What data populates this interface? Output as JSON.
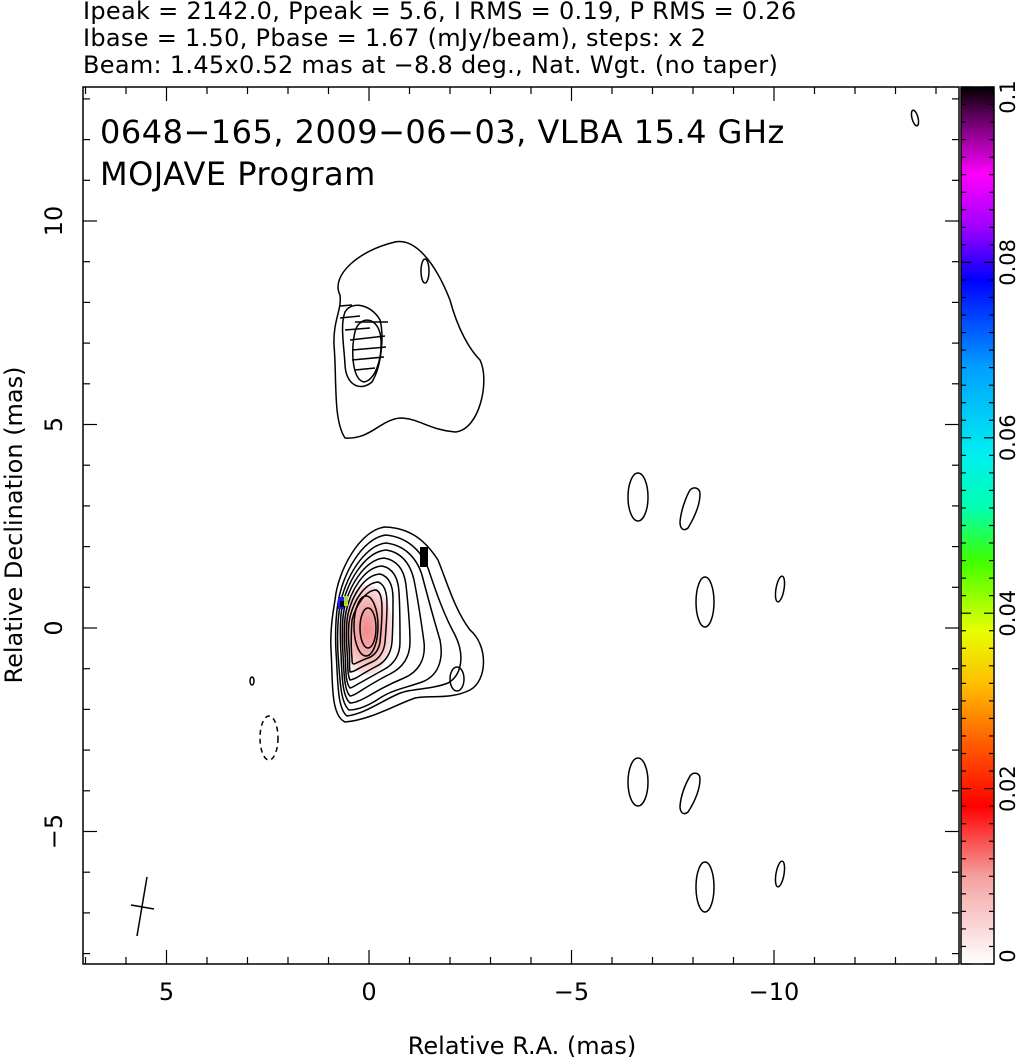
{
  "header": {
    "line1": "Ipeak = 2142.0, Ppeak = 5.6, I RMS = 0.19, P RMS = 0.26",
    "line2": "Ibase = 1.50, Pbase = 1.67 (mJy/beam), steps: x 2",
    "line3": "Beam: 1.45x0.52 mas at −8.8 deg., Nat. Wgt. (no taper)"
  },
  "chart_data": {
    "type": "contour",
    "title": "0648−165, 2009−06−03, VLBA 15.4 GHz",
    "subtitle": "MOJAVE Program",
    "xlabel": "Relative R.A. (mas)",
    "ylabel": "Relative Declination (mas)",
    "xlim": [
      7,
      -14.5
    ],
    "ylim": [
      -8.2,
      13.3
    ],
    "x_ticks": [
      5,
      0,
      -5,
      -10
    ],
    "x_tick_labels": [
      "5",
      "0",
      "−5",
      "−10"
    ],
    "y_ticks": [
      10,
      5,
      0,
      -5
    ],
    "y_tick_labels": [
      "10",
      "5",
      "0",
      "−5"
    ],
    "colorbar": {
      "range": [
        0,
        0.1
      ],
      "ticks": [
        0,
        0.02,
        0.04,
        0.06,
        0.08,
        0.1
      ],
      "tick_labels": [
        "0",
        "0.02",
        "0.04",
        "0.06",
        "0.08",
        "0.1"
      ]
    },
    "beam": {
      "major_mas": 1.45,
      "minor_mas": 0.52,
      "pa_deg": -8.8
    },
    "core": {
      "x": 0,
      "y": 0
    },
    "jet_component": {
      "x": 0,
      "y": 7
    }
  }
}
